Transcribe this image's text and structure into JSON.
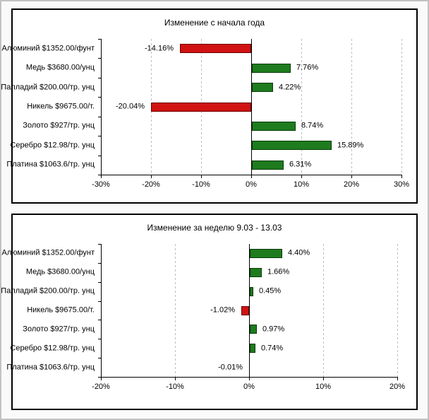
{
  "colors": {
    "positive_fill": "#1e7b1e",
    "positive_border": "#0a3d0a",
    "negative_fill": "#d01212",
    "negative_border": "#6e0000",
    "grid": "#bdbdbd",
    "axis": "#000000",
    "panel_background": "#ffffff",
    "panel_border": "#000000",
    "text": "#000000"
  },
  "chart_data": [
    {
      "type": "bar",
      "orientation": "horizontal",
      "title": "Изменение с начала года",
      "categories": [
        "Алюминий $1352.00/фунт",
        "Медь $3680.00/унц",
        "Палладий $200.00/тр. унц",
        "Никель $9675.00/т.",
        "Золото $927/тр. унц",
        "Серебро $12.98/тр. унц",
        "Платина $1063.6/тр. унц"
      ],
      "values": [
        -14.16,
        7.76,
        4.22,
        -20.04,
        8.74,
        15.89,
        6.31
      ],
      "value_labels": [
        "-14.16%",
        "7.76%",
        "4.22%",
        "-20.04%",
        "8.74%",
        "15.89%",
        "6.31%"
      ],
      "xlim": [
        -30,
        30
      ],
      "tick_step": 10,
      "tick_labels": [
        "-30%",
        "-20%",
        "-10%",
        "0%",
        "10%",
        "20%",
        "30%"
      ],
      "grid": true,
      "legend": "none"
    },
    {
      "type": "bar",
      "orientation": "horizontal",
      "title": "Изменение за неделю 9.03 - 13.03",
      "categories": [
        "Алюминий $1352.00/фунт",
        "Медь $3680.00/унц",
        "Палладий $200.00/тр. унц",
        "Никель $9675.00/т.",
        "Золото $927/тр. унц",
        "Серебро $12.98/тр. унц",
        "Платина $1063.6/тр. унц"
      ],
      "values": [
        4.4,
        1.66,
        0.45,
        -1.02,
        0.97,
        0.74,
        -0.01
      ],
      "value_labels": [
        "4.40%",
        "1.66%",
        "0.45%",
        "-1.02%",
        "0.97%",
        "0.74%",
        "-0.01%"
      ],
      "xlim": [
        -20,
        20
      ],
      "tick_step": 10,
      "tick_labels": [
        "-20%",
        "-10%",
        "0%",
        "10%",
        "20%"
      ],
      "grid": true,
      "legend": "none"
    }
  ]
}
